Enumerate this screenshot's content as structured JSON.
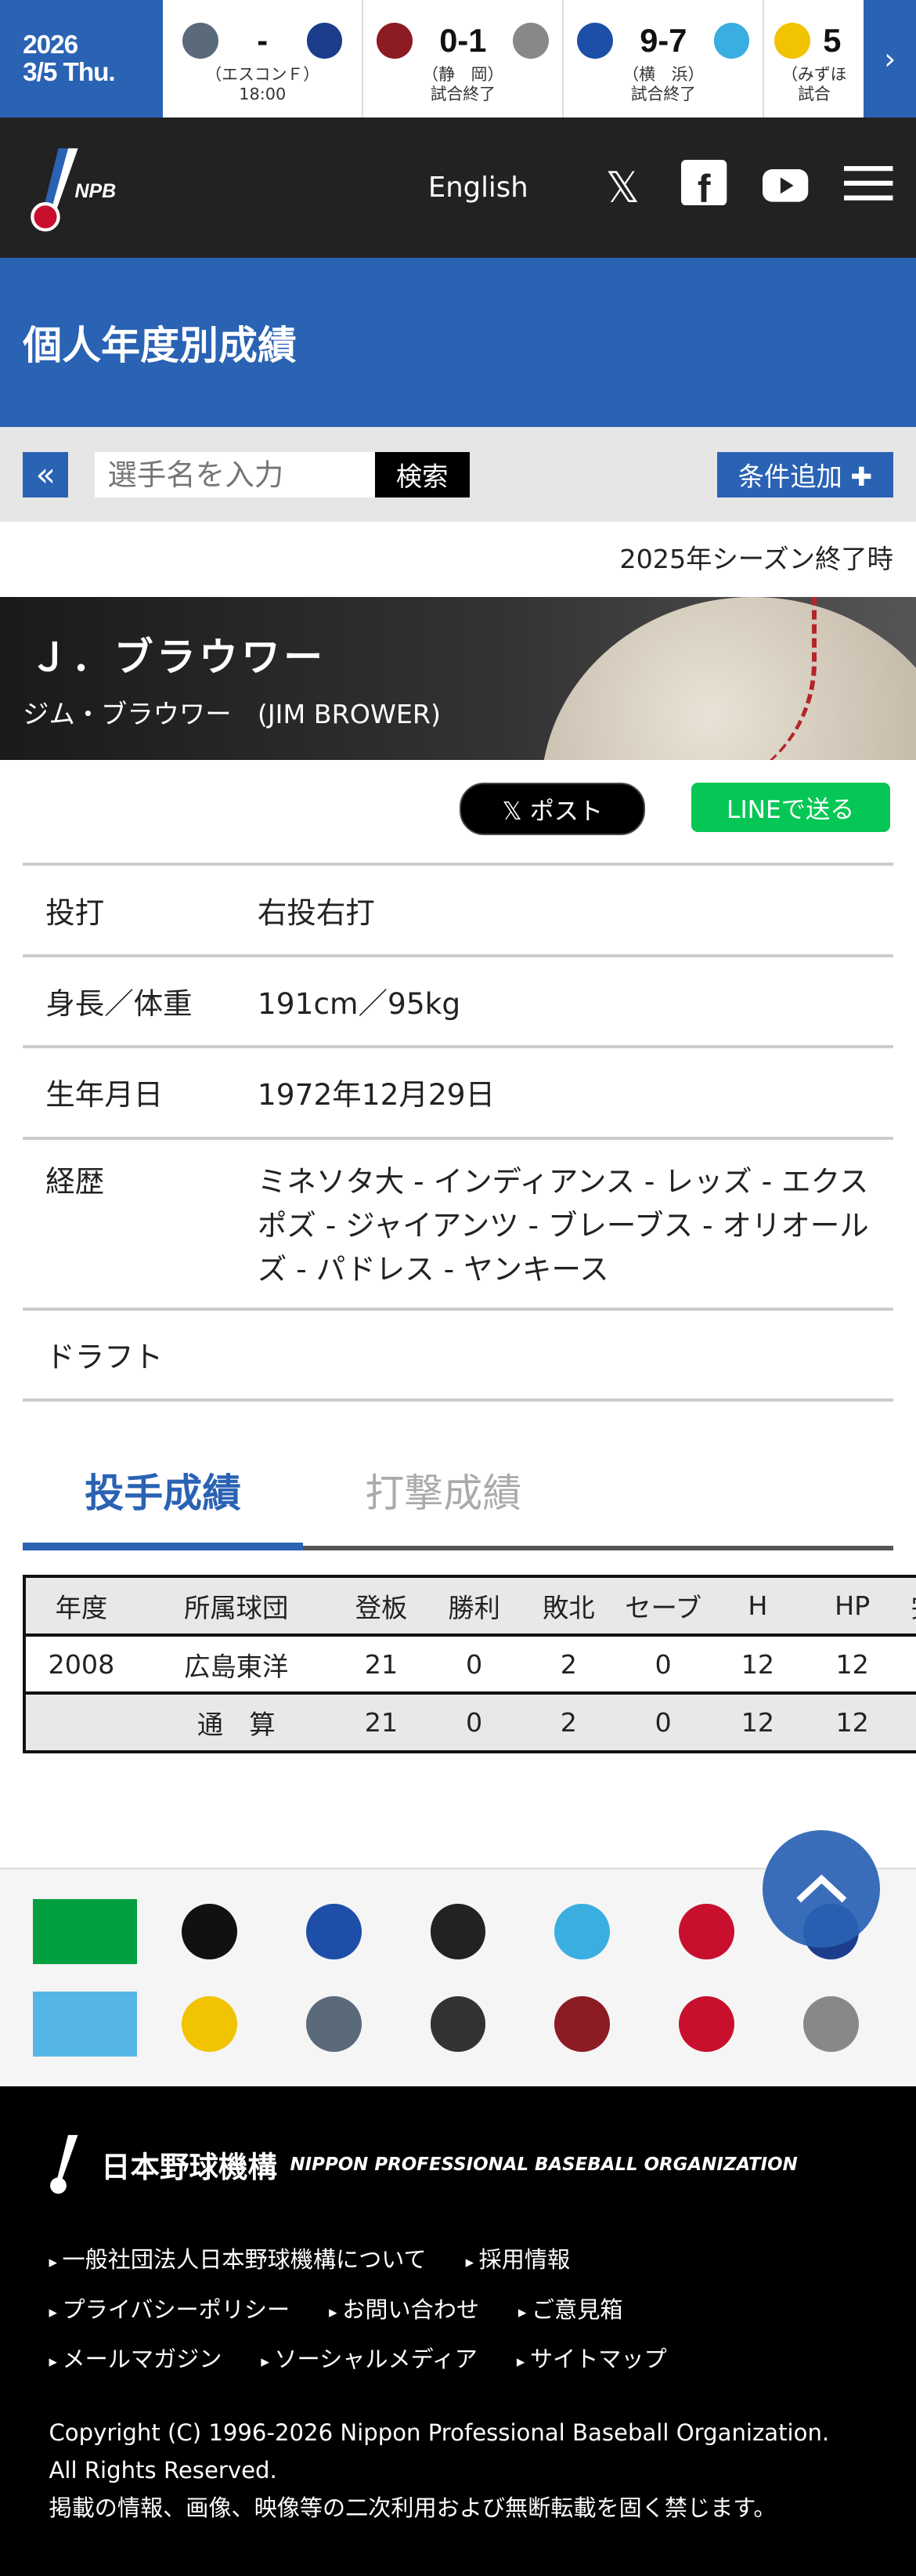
{
  "scoreboard": {
    "date_year": "2026",
    "date_day": "3/5 Thu.",
    "games": [
      {
        "home_color": "#5a6a7a",
        "away_color": "#1b3d8c",
        "result": "-",
        "venue": "（エスコンＦ）",
        "status": "18:00"
      },
      {
        "home_color": "#8c1b24",
        "away_color": "#888888",
        "result": "0-1",
        "venue": "（静　岡）",
        "status": "試合終了"
      },
      {
        "home_color": "#1d4fa8",
        "away_color": "#3aaee0",
        "result": "9-7",
        "venue": "（横　浜）",
        "status": "試合終了"
      },
      {
        "home_color": "#f2c300",
        "away_color": "#333333",
        "result": "5",
        "venue": "（みずほ",
        "status": "試合"
      }
    ],
    "next_icon": "chevron-right-icon"
  },
  "header": {
    "logo": "NPB",
    "english": "English",
    "icons": [
      "x-icon",
      "facebook-icon",
      "youtube-icon",
      "menu-icon"
    ]
  },
  "page_title": "個人年度別成績",
  "search": {
    "placeholder": "選手名を入力",
    "button": "検索",
    "add_condition": "条件追加 ✚"
  },
  "season_note": "2025年シーズン終了時",
  "player": {
    "name": "Ｊ．ブラウワー",
    "kana": "ジム・ブラウワー　(JIM BROWER)"
  },
  "share": {
    "x_post": "𝕏 ポスト",
    "line": "LINEで送る"
  },
  "profile": [
    {
      "label": "投打",
      "value": "右投右打"
    },
    {
      "label": "身長／体重",
      "value": "191cm／95kg"
    },
    {
      "label": "生年月日",
      "value": "1972年12月29日"
    },
    {
      "label": "経歴",
      "value": "ミネソタ大 - インディアンス - レッズ - エクスポズ - ジャイアンツ - ブレーブス - オリオールズ - パドレス - ヤンキース"
    },
    {
      "label": "ドラフト",
      "value": ""
    }
  ],
  "tabs": [
    {
      "label": "投手成績"
    },
    {
      "label": "打撃成績"
    }
  ],
  "stats": {
    "headers": [
      "年度",
      "所属球団",
      "登板",
      "勝利",
      "敗北",
      "セーブ",
      "H",
      "HP",
      "完"
    ],
    "rows": [
      [
        "2008",
        "広島東洋",
        "21",
        "0",
        "2",
        "0",
        "12",
        "12",
        ""
      ]
    ],
    "total": [
      "",
      "通　算",
      "21",
      "0",
      "2",
      "0",
      "12",
      "12",
      ""
    ]
  },
  "teams": {
    "colors": [
      "#00a040",
      "#111111",
      "#1d4fa8",
      "#222222",
      "#3aaee0",
      "#c8102e",
      "#1b3d8c",
      "#55b6e6",
      "#f2c300",
      "#5a6a7a",
      "#333333",
      "#8c1b24",
      "#c8102e",
      "#888888"
    ]
  },
  "footer": {
    "org_jp": "日本野球機構",
    "org_en": "NIPPON PROFESSIONAL BASEBALL ORGANIZATION",
    "links": [
      [
        "一般社団法人日本野球機構について",
        "採用情報"
      ],
      [
        "プライバシーポリシー",
        "お問い合わせ",
        "ご意見箱"
      ],
      [
        "メールマガジン",
        "ソーシャルメディア",
        "サイトマップ"
      ]
    ],
    "copyright1": "Copyright (C) 1996-2026 Nippon Professional Baseball Organization.",
    "copyright2": "All Rights Reserved.",
    "notice": "掲載の情報、画像、映像等の二次利用および無断転載を固く禁じます。"
  },
  "scroll_top_icon": "chevron-up-icon"
}
